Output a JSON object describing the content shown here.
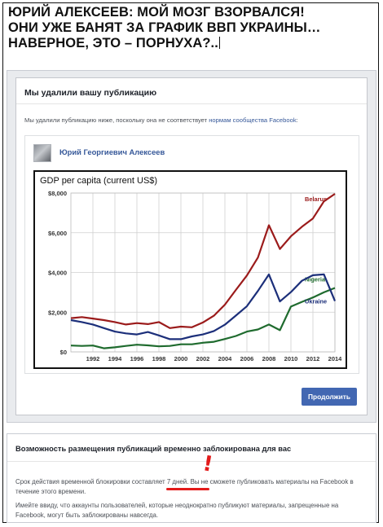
{
  "headline": {
    "line1": "ЮРИЙ АЛЕКСЕЕВ: МОЙ МОЗГ ВЗОРВАЛСЯ!",
    "line2": "ОНИ УЖЕ БАНЯТ ЗА ГРАФИК ВВП УКРАИНЫ…",
    "line3": "НАВЕРНОЕ, ЭТО – ПОРНУХА?.."
  },
  "dialog": {
    "title": "Мы удалили вашу публикацию",
    "text_before": "Мы удалили публикацию ниже, поскольку она не соответствует ",
    "link": "нормам сообщества Facebook",
    "text_after": ":"
  },
  "post": {
    "author": "Юрий Георгиевич Алексеев"
  },
  "continue_button": "Продолжить",
  "block_notice": {
    "title": "Возможность размещения публикаций временно заблокирована для вас",
    "text1": "Срок действия временной блокировки составляет 7 дней. Вы не сможете публиковать материалы на Facebook в течение этого времени.",
    "text2": "Имейте ввиду, что аккаунты пользователей, которые неоднократно публикуют материалы, запрещенные на Facebook, могут быть заблокированы навсегда."
  },
  "annotation": {
    "mark": "!",
    "color": "#e31b1b"
  },
  "colors": {
    "fb_blue": "#4267b2",
    "link_blue": "#365899",
    "belarus": "#9b1b1b",
    "nigeria": "#1f6b2e",
    "ukraine": "#1c2f7a"
  },
  "chart_data": {
    "type": "line",
    "title": "GDP per capita (current US$)",
    "xlabel": "",
    "ylabel": "",
    "ylim": [
      0,
      8000
    ],
    "x": [
      1990,
      1991,
      1992,
      1993,
      1994,
      1995,
      1996,
      1997,
      1998,
      1999,
      2000,
      2001,
      2002,
      2003,
      2004,
      2005,
      2006,
      2007,
      2008,
      2009,
      2010,
      2011,
      2012,
      2013,
      2014
    ],
    "x_ticks": [
      "1992",
      "1994",
      "1996",
      "1998",
      "2000",
      "2002",
      "2004",
      "2006",
      "2008",
      "2010",
      "2012",
      "2014"
    ],
    "y_ticks": [
      "$8,000",
      "$6,000",
      "$4,000",
      "$2,000",
      "$0"
    ],
    "y_tick_values": [
      8000,
      6000,
      4000,
      2000,
      0
    ],
    "grid": true,
    "series": [
      {
        "name": "Belarus",
        "color": "#9b1b1b",
        "values": [
          1700,
          1750,
          1680,
          1600,
          1500,
          1380,
          1450,
          1400,
          1500,
          1200,
          1270,
          1240,
          1480,
          1820,
          2380,
          3120,
          3850,
          4750,
          6380,
          5180,
          5820,
          6300,
          6720,
          7580,
          7960
        ]
      },
      {
        "name": "Nigeria",
        "color": "#1f6b2e",
        "values": [
          320,
          300,
          320,
          180,
          230,
          300,
          360,
          330,
          280,
          300,
          380,
          380,
          460,
          510,
          650,
          800,
          1020,
          1130,
          1380,
          1090,
          2280,
          2520,
          2740,
          3000,
          3220
        ]
      },
      {
        "name": "Ukraine",
        "color": "#1c2f7a",
        "values": [
          1600,
          1500,
          1380,
          1200,
          1020,
          930,
          880,
          1000,
          830,
          640,
          640,
          780,
          880,
          1050,
          1370,
          1830,
          2300,
          3070,
          3900,
          2540,
          3010,
          3580,
          3860,
          3900,
          2560
        ]
      }
    ]
  }
}
